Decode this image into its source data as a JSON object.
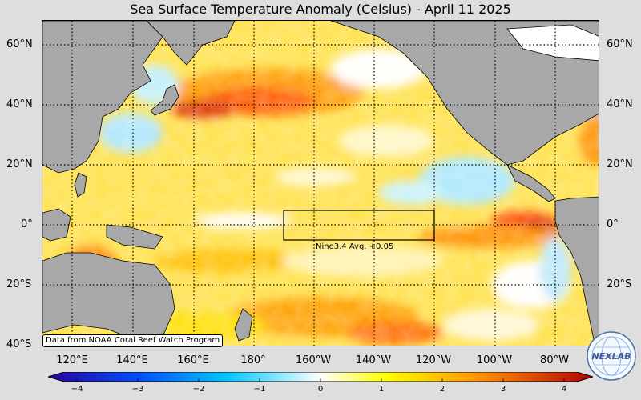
{
  "title": "Sea Surface Temperature Anomaly (Celsius) - April 11 2025",
  "latitude_labels": [
    "60°N",
    "40°N",
    "20°N",
    "0°",
    "20°S",
    "40°S"
  ],
  "longitude_labels": [
    "120°E",
    "140°E",
    "160°E",
    "180°",
    "160°W",
    "140°W",
    "120°W",
    "100°W",
    "80°W"
  ],
  "nino_box": {
    "label": "Nino3.4 Avg. +0.05"
  },
  "source_note": "Data from NOAA Coral Reef Watch Program",
  "colorbar": {
    "ticks": [
      "−4",
      "−3",
      "−2",
      "−1",
      "0",
      "1",
      "2",
      "3",
      "4"
    ],
    "colors": [
      "#2a00a0",
      "#0050ff",
      "#00c8ff",
      "#ffffff",
      "#ffff00",
      "#ff8c00",
      "#b40000"
    ]
  },
  "logo": {
    "text": "NEXLAB",
    "icon": "globe-logo-icon"
  },
  "colors": {
    "land": "#a8a8a8",
    "ocean_warm": "#ffcc00",
    "ocean_hot": "#ff3000",
    "ocean_neutral": "#fffbe8",
    "ocean_cool": "#aae8ff"
  }
}
